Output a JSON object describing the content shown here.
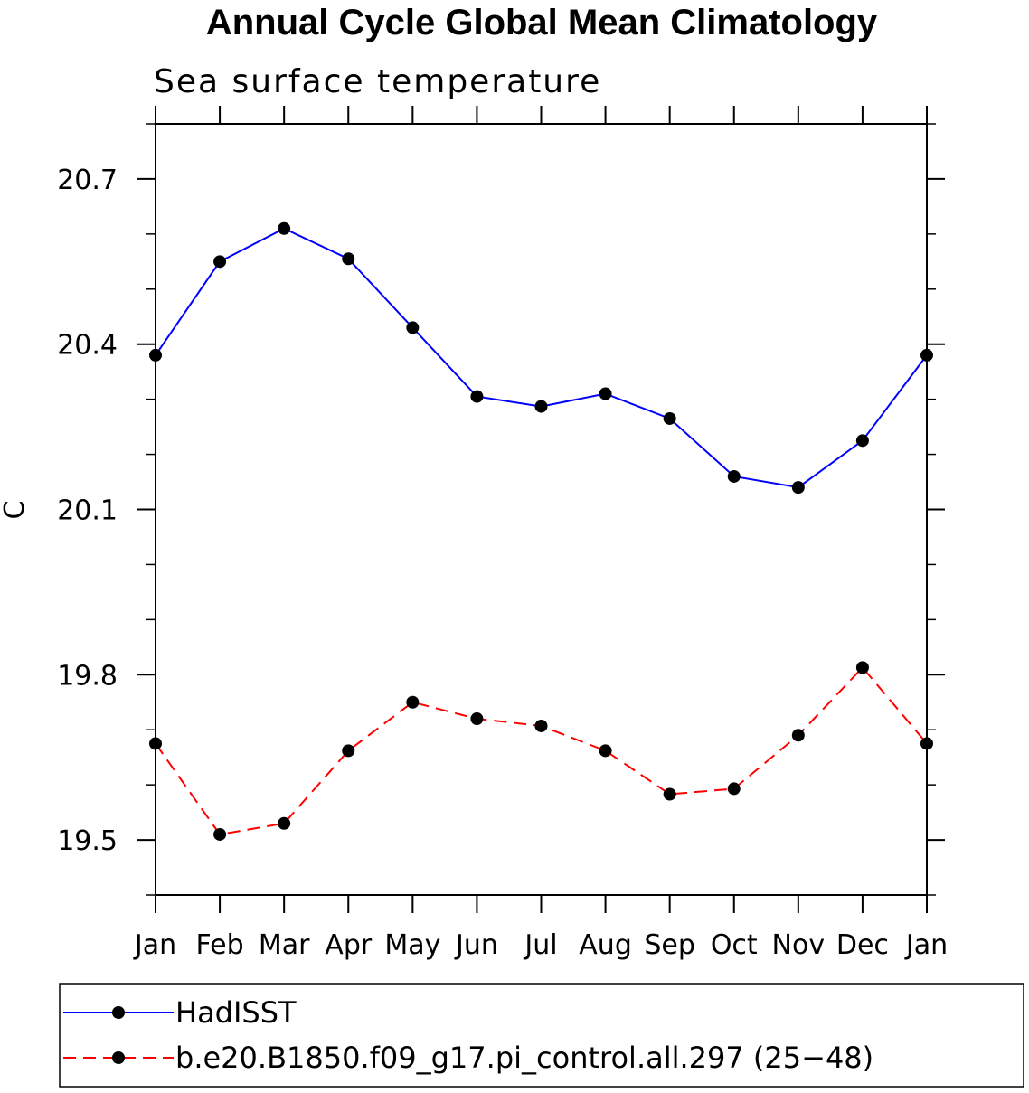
{
  "chart_data": {
    "type": "line",
    "title": "Annual Cycle Global Mean Climatology",
    "subtitle": "Sea surface temperature",
    "ylabel": "C",
    "xlabel": "",
    "categories": [
      "Jan",
      "Feb",
      "Mar",
      "Apr",
      "May",
      "Jun",
      "Jul",
      "Aug",
      "Sep",
      "Oct",
      "Nov",
      "Dec",
      "Jan"
    ],
    "ylim": [
      19.4,
      20.8
    ],
    "yticks": [
      19.5,
      19.8,
      20.1,
      20.4,
      20.7
    ],
    "ytick_labels": [
      "19.5",
      "19.8",
      "20.1",
      "20.4",
      "20.7"
    ],
    "yminor_step": 0.1,
    "legend_position": "bottom",
    "series": [
      {
        "name": "HadISST",
        "color": "#0000ff",
        "dash": "solid",
        "marker_color": "#000000",
        "values": [
          20.38,
          20.55,
          20.61,
          20.555,
          20.43,
          20.305,
          20.287,
          20.31,
          20.265,
          20.16,
          20.14,
          20.225,
          20.38
        ]
      },
      {
        "name": "b.e20.B1850.f09_g17.pi_control.all.297 (25−48)",
        "color": "#ff0000",
        "dash": "dashed",
        "marker_color": "#000000",
        "values": [
          19.675,
          19.51,
          19.53,
          19.662,
          19.75,
          19.72,
          19.707,
          19.662,
          19.583,
          19.593,
          19.69,
          19.813,
          19.675
        ]
      }
    ]
  }
}
